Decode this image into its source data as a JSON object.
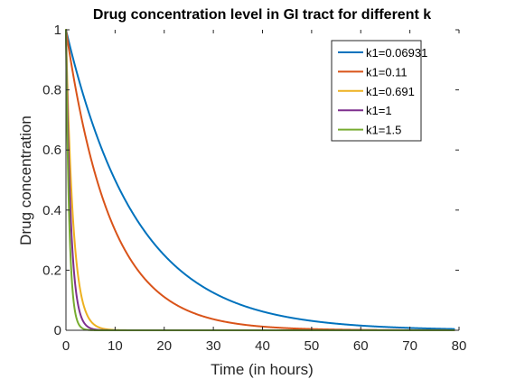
{
  "chart_data": {
    "type": "line",
    "title": "Drug concentration level in GI tract for different k",
    "xlabel": "Time (in hours)",
    "ylabel": "Drug concentration",
    "xlim": [
      0,
      80
    ],
    "ylim": [
      0,
      1
    ],
    "xticks": [
      "0",
      "10",
      "20",
      "30",
      "40",
      "50",
      "60",
      "70",
      "80"
    ],
    "yticks": [
      "0",
      "0.2",
      "0.4",
      "0.6",
      "0.8",
      "1"
    ],
    "x_max_data": 79,
    "grid": false,
    "legend_position": "top-right",
    "model": "exp(-k1 * t)",
    "series": [
      {
        "name": "k1=0.06931",
        "k": 0.06931,
        "color": "#0072bd"
      },
      {
        "name": "k1=0.11",
        "k": 0.11,
        "color": "#d95319"
      },
      {
        "name": "k1=0.691",
        "k": 0.691,
        "color": "#edb120"
      },
      {
        "name": "k1=1",
        "k": 1,
        "color": "#7e2f8e"
      },
      {
        "name": "k1=1.5",
        "k": 1.5,
        "color": "#77ac30"
      }
    ]
  }
}
